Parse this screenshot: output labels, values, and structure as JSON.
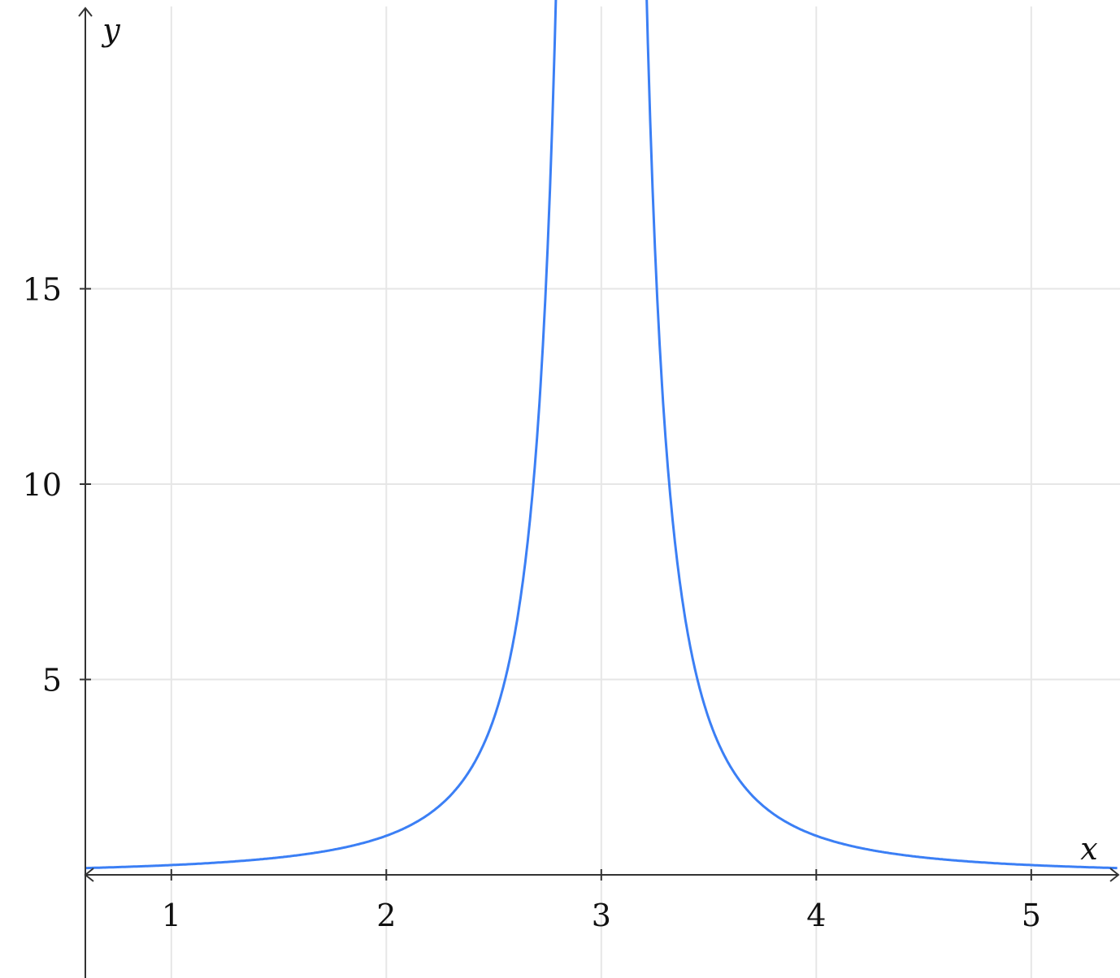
{
  "chart_data": {
    "type": "line",
    "title": "",
    "xlabel": "x",
    "ylabel": "y",
    "function": "y = 1/(x-3)^2",
    "xlim": [
      0.6,
      5.4
    ],
    "ylim": [
      -2.6,
      22.4
    ],
    "xticks": [
      1,
      2,
      3,
      4,
      5
    ],
    "yticks": [
      5,
      10,
      15
    ],
    "xtick_labels": [
      "1",
      "2",
      "3",
      "4",
      "5"
    ],
    "ytick_labels": [
      "5",
      "10",
      "15"
    ],
    "grid": true,
    "series": [
      {
        "color": "#3b7ff5",
        "x": [
          0.6,
          1,
          1.5,
          2,
          2.25,
          2.5,
          2.6,
          2.7,
          2.78,
          3.22,
          3.3,
          3.4,
          3.5,
          3.75,
          4,
          4.5,
          5,
          5.4
        ],
        "y": [
          0.174,
          0.25,
          0.444,
          1,
          1.778,
          4,
          6.25,
          11.11,
          20.66,
          20.66,
          11.11,
          6.25,
          4,
          1.778,
          1,
          0.444,
          0.25,
          0.174
        ]
      }
    ]
  }
}
